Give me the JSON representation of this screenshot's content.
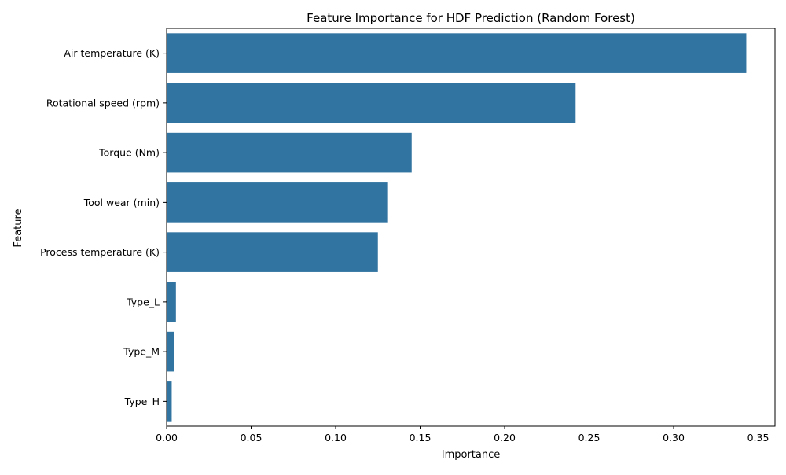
{
  "chart_data": {
    "type": "bar",
    "orientation": "horizontal",
    "title": "Feature Importance for HDF Prediction (Random Forest)",
    "xlabel": "Importance",
    "ylabel": "Feature",
    "categories": [
      "Air temperature (K)",
      "Rotational speed (rpm)",
      "Torque (Nm)",
      "Tool wear (min)",
      "Process temperature (K)",
      "Type_L",
      "Type_M",
      "Type_H"
    ],
    "values": [
      0.343,
      0.242,
      0.145,
      0.131,
      0.125,
      0.0055,
      0.0045,
      0.003
    ],
    "xlim": [
      0,
      0.36
    ],
    "xticks": [
      0.0,
      0.05,
      0.1,
      0.15,
      0.2,
      0.25,
      0.3,
      0.35
    ],
    "xtick_labels": [
      "0.00",
      "0.05",
      "0.10",
      "0.15",
      "0.20",
      "0.25",
      "0.30",
      "0.35"
    ],
    "grid": false,
    "legend": "none",
    "bar_color": "#3274a1"
  }
}
